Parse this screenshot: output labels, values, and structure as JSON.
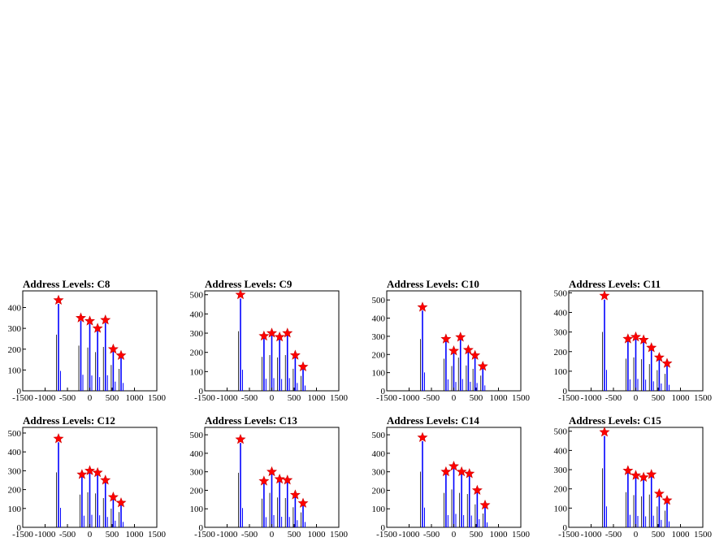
{
  "chart_data": [
    {
      "type": "bar",
      "title": "Address Levels: C8",
      "xlim": [
        -1500,
        1500
      ],
      "ylim": [
        0,
        480
      ],
      "xticks": [
        -1500,
        -1000,
        -500,
        0,
        500,
        1000,
        1500
      ],
      "yticks": [
        0,
        100,
        200,
        300,
        400
      ],
      "colors": {
        "bars": "#0000ff",
        "markers": "#ff0000"
      },
      "peaks": [
        {
          "x": -700,
          "y": 435
        },
        {
          "x": -200,
          "y": 350
        },
        {
          "x": 0,
          "y": 335
        },
        {
          "x": 175,
          "y": 300
        },
        {
          "x": 350,
          "y": 340
        },
        {
          "x": 525,
          "y": 200
        },
        {
          "x": 700,
          "y": 170
        }
      ]
    },
    {
      "type": "bar",
      "title": "Address Levels: C9",
      "xlim": [
        -1500,
        1500
      ],
      "ylim": [
        0,
        520
      ],
      "xticks": [
        -1500,
        -1000,
        -500,
        0,
        500,
        1000,
        1500
      ],
      "yticks": [
        0,
        100,
        200,
        300,
        400,
        500
      ],
      "colors": {
        "bars": "#0000ff",
        "markers": "#ff0000"
      },
      "peaks": [
        {
          "x": -700,
          "y": 500
        },
        {
          "x": -175,
          "y": 285
        },
        {
          "x": 0,
          "y": 300
        },
        {
          "x": 175,
          "y": 280
        },
        {
          "x": 350,
          "y": 300
        },
        {
          "x": 525,
          "y": 185
        },
        {
          "x": 700,
          "y": 125
        }
      ]
    },
    {
      "type": "bar",
      "title": "Address Levels: C10",
      "xlim": [
        -1500,
        1500
      ],
      "ylim": [
        0,
        550
      ],
      "xticks": [
        -1500,
        -1000,
        -500,
        0,
        500,
        1000,
        1500
      ],
      "yticks": [
        0,
        100,
        200,
        300,
        400,
        500
      ],
      "colors": {
        "bars": "#0000ff",
        "markers": "#ff0000"
      },
      "peaks": [
        {
          "x": -700,
          "y": 460
        },
        {
          "x": -175,
          "y": 285
        },
        {
          "x": 0,
          "y": 220
        },
        {
          "x": 150,
          "y": 295
        },
        {
          "x": 325,
          "y": 225
        },
        {
          "x": 475,
          "y": 195
        },
        {
          "x": 650,
          "y": 135
        }
      ]
    },
    {
      "type": "bar",
      "title": "Address Levels: C11",
      "xlim": [
        -1500,
        1500
      ],
      "ylim": [
        0,
        510
      ],
      "xticks": [
        -1500,
        -1000,
        -500,
        0,
        500,
        1000,
        1500
      ],
      "yticks": [
        0,
        100,
        200,
        300,
        400,
        500
      ],
      "colors": {
        "bars": "#0000ff",
        "markers": "#ff0000"
      },
      "peaks": [
        {
          "x": -700,
          "y": 485
        },
        {
          "x": -175,
          "y": 265
        },
        {
          "x": 0,
          "y": 275
        },
        {
          "x": 175,
          "y": 260
        },
        {
          "x": 350,
          "y": 220
        },
        {
          "x": 525,
          "y": 170
        },
        {
          "x": 700,
          "y": 140
        }
      ]
    },
    {
      "type": "bar",
      "title": "Address Levels: C12",
      "xlim": [
        -1500,
        1500
      ],
      "ylim": [
        0,
        530
      ],
      "xticks": [
        -1500,
        -1000,
        -500,
        0,
        500,
        1000,
        1500
      ],
      "yticks": [
        0,
        100,
        200,
        300,
        400,
        500
      ],
      "colors": {
        "bars": "#0000ff",
        "markers": "#ff0000"
      },
      "peaks": [
        {
          "x": -700,
          "y": 470
        },
        {
          "x": -175,
          "y": 280
        },
        {
          "x": 0,
          "y": 300
        },
        {
          "x": 175,
          "y": 290
        },
        {
          "x": 350,
          "y": 250
        },
        {
          "x": 525,
          "y": 160
        },
        {
          "x": 700,
          "y": 130
        }
      ]
    },
    {
      "type": "bar",
      "title": "Address Levels: C13",
      "xlim": [
        -1500,
        1500
      ],
      "ylim": [
        0,
        540
      ],
      "xticks": [
        -1500,
        -1000,
        -500,
        0,
        500,
        1000,
        1500
      ],
      "yticks": [
        0,
        100,
        200,
        300,
        400,
        500
      ],
      "colors": {
        "bars": "#0000ff",
        "markers": "#ff0000"
      },
      "peaks": [
        {
          "x": -700,
          "y": 475
        },
        {
          "x": -175,
          "y": 250
        },
        {
          "x": 0,
          "y": 300
        },
        {
          "x": 175,
          "y": 260
        },
        {
          "x": 350,
          "y": 255
        },
        {
          "x": 525,
          "y": 175
        },
        {
          "x": 700,
          "y": 130
        }
      ]
    },
    {
      "type": "bar",
      "title": "Address Levels: C14",
      "xlim": [
        -1500,
        1500
      ],
      "ylim": [
        0,
        540
      ],
      "xticks": [
        -1500,
        -1000,
        -500,
        0,
        500,
        1000,
        1500
      ],
      "yticks": [
        0,
        100,
        200,
        300,
        400,
        500
      ],
      "colors": {
        "bars": "#0000ff",
        "markers": "#ff0000"
      },
      "peaks": [
        {
          "x": -700,
          "y": 485
        },
        {
          "x": -175,
          "y": 300
        },
        {
          "x": 0,
          "y": 330
        },
        {
          "x": 175,
          "y": 300
        },
        {
          "x": 350,
          "y": 290
        },
        {
          "x": 525,
          "y": 200
        },
        {
          "x": 700,
          "y": 120
        }
      ]
    },
    {
      "type": "bar",
      "title": "Address Levels: C15",
      "xlim": [
        -1500,
        1500
      ],
      "ylim": [
        0,
        520
      ],
      "xticks": [
        -1500,
        -1000,
        -500,
        0,
        500,
        1000,
        1500
      ],
      "yticks": [
        0,
        100,
        200,
        300,
        400,
        500
      ],
      "colors": {
        "bars": "#0000ff",
        "markers": "#ff0000"
      },
      "peaks": [
        {
          "x": -700,
          "y": 495
        },
        {
          "x": -175,
          "y": 295
        },
        {
          "x": 0,
          "y": 270
        },
        {
          "x": 175,
          "y": 260
        },
        {
          "x": 350,
          "y": 275
        },
        {
          "x": 525,
          "y": 175
        },
        {
          "x": 700,
          "y": 140
        }
      ]
    }
  ]
}
